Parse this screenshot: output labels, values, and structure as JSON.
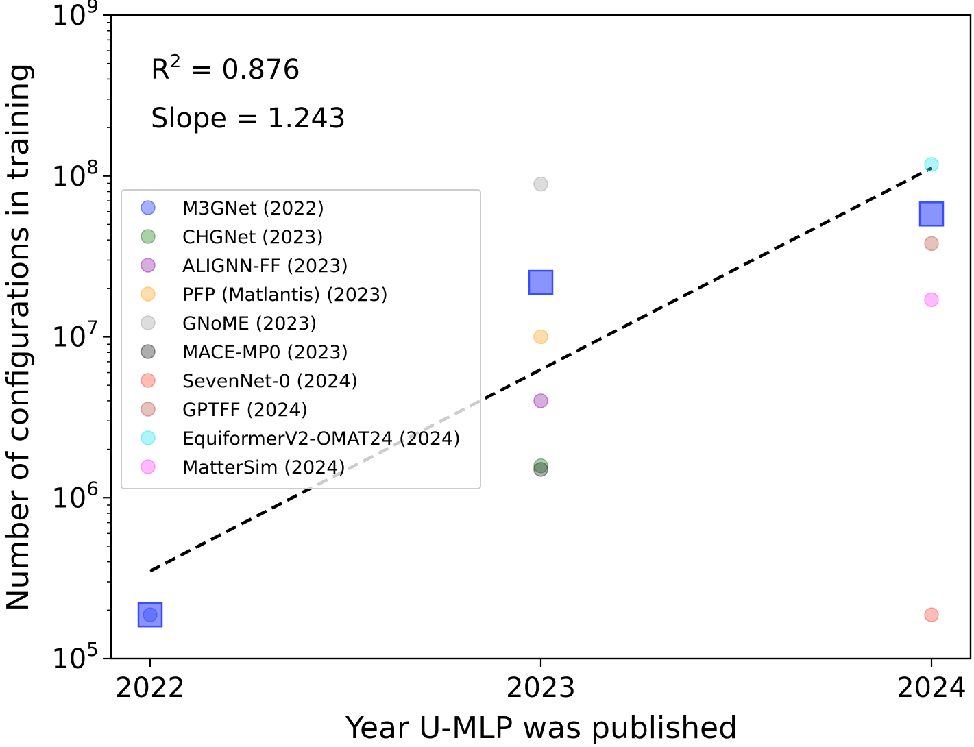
{
  "chart_data": {
    "type": "scatter",
    "y_scale": "log",
    "xlabel": "Year U-MLP was published",
    "ylabel": "Number of configurations in training",
    "xlim": [
      2021.9,
      2024.1
    ],
    "ylim": [
      100000,
      1000000000
    ],
    "x_ticks": [
      2022,
      2023,
      2024
    ],
    "x_tick_labels": [
      "2022",
      "2023",
      "2024"
    ],
    "y_ticks": [
      {
        "value": 100000,
        "base": "10",
        "exp": "5"
      },
      {
        "value": 1000000,
        "base": "10",
        "exp": "6"
      },
      {
        "value": 10000000,
        "base": "10",
        "exp": "7"
      },
      {
        "value": 100000000,
        "base": "10",
        "exp": "8"
      },
      {
        "value": 1000000000,
        "base": "10",
        "exp": "9"
      }
    ],
    "grid": false,
    "legend_position": "center-left",
    "annotations": {
      "r2_label": "R",
      "r2_sup": "2",
      "r2_value": " = 0.876",
      "slope_text": "Slope = 1.243"
    },
    "series": [
      {
        "name": "M3GNet (2022)",
        "x": 2022,
        "y": 187000,
        "color": "#1f3cff"
      },
      {
        "name": "CHGNet (2023)",
        "x": 2023,
        "y": 1580000,
        "color": "#2e8b2e"
      },
      {
        "name": "ALIGNN-FF (2023)",
        "x": 2023,
        "y": 4000000,
        "color": "#9b30b0"
      },
      {
        "name": "PFP (Matlantis) (2023)",
        "x": 2023,
        "y": 10000000,
        "color": "#ffad33"
      },
      {
        "name": "GNoME (2023)",
        "x": 2023,
        "y": 89000000,
        "color": "#aaaaaa"
      },
      {
        "name": "MACE-MP0 (2023)",
        "x": 2023,
        "y": 1500000,
        "color": "#333333"
      },
      {
        "name": "SevenNet-0 (2024)",
        "x": 2024,
        "y": 187000,
        "color": "#ff5a4a"
      },
      {
        "name": "GPTFF (2024)",
        "x": 2024,
        "y": 38000000,
        "color": "#c0665e"
      },
      {
        "name": "EquiformerV2-OMAT24 (2024)",
        "x": 2024,
        "y": 118000000,
        "color": "#33e6f2"
      },
      {
        "name": "MatterSim (2024)",
        "x": 2024,
        "y": 17000000,
        "color": "#ff55ff"
      }
    ],
    "yearly_markers": {
      "color": "#3a4cff",
      "points": [
        {
          "x": 2022,
          "y": 187000
        },
        {
          "x": 2023,
          "y": 21800000
        },
        {
          "x": 2024,
          "y": 58000000
        }
      ]
    },
    "trend_line": {
      "x": [
        2022,
        2024
      ],
      "y": [
        350000,
        112000000
      ],
      "color": "#000000"
    }
  }
}
